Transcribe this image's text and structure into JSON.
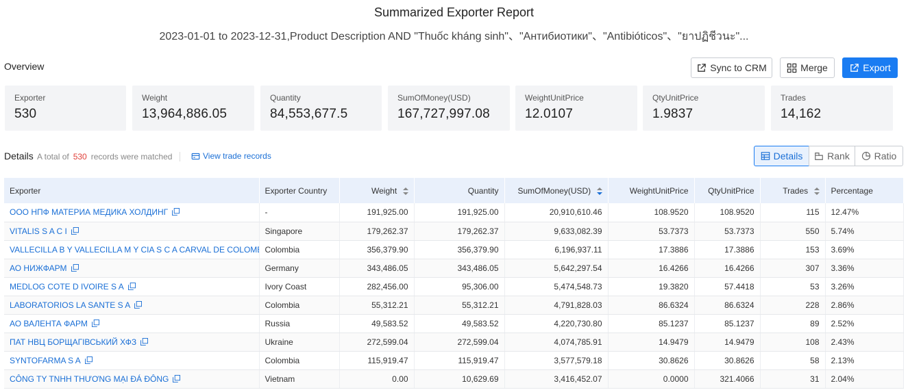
{
  "report": {
    "title": "Summarized Exporter Report",
    "subtitle": "2023-01-01 to 2023-12-31,Product Description AND \"Thuốc kháng sinh\"、\"Антибиотики\"、\"Antibióticos\"、\"ยาปฏิชีวนะ\"..."
  },
  "overview": {
    "label": "Overview",
    "actions": {
      "sync": "Sync to CRM",
      "merge": "Merge",
      "export": "Export"
    },
    "stats": [
      {
        "label": "Exporter",
        "value": "530"
      },
      {
        "label": "Weight",
        "value": "13,964,886.05"
      },
      {
        "label": "Quantity",
        "value": "84,553,677.5"
      },
      {
        "label": "SumOfMoney(USD)",
        "value": "167,727,997.08"
      },
      {
        "label": "WeightUnitPrice",
        "value": "12.0107"
      },
      {
        "label": "QtyUnitPrice",
        "value": "1.9837"
      },
      {
        "label": "Trades",
        "value": "14,162"
      }
    ]
  },
  "details": {
    "label": "Details",
    "total_prefix": "A total of",
    "total_count": "530",
    "total_suffix": "records were matched",
    "view_link": "View trade records",
    "views": {
      "details": "Details",
      "rank": "Rank",
      "ratio": "Ratio"
    }
  },
  "table": {
    "columns": [
      "Exporter",
      "Exporter Country",
      "Weight",
      "Quantity",
      "SumOfMoney(USD)",
      "WeightUnitPrice",
      "QtyUnitPrice",
      "Trades",
      "Percentage"
    ],
    "rows": [
      [
        "ООО НПФ МАТЕРИА МЕДИКА ХОЛДИНГ",
        "-",
        "191,925.00",
        "191,925.00",
        "20,910,610.46",
        "108.9520",
        "108.9520",
        "115",
        "12.47%"
      ],
      [
        "VITALIS S A C I",
        "Singapore",
        "179,262.37",
        "179,262.37",
        "9,633,082.39",
        "53.7373",
        "53.7373",
        "550",
        "5.74%"
      ],
      [
        "VALLECILLA B Y VALLECILLA M Y CIA S C A CARVAL DE COLOMBIA",
        "Colombia",
        "356,379.90",
        "356,379.90",
        "6,196,937.11",
        "17.3886",
        "17.3886",
        "153",
        "3.69%"
      ],
      [
        "АО НИЖФАРМ",
        "Germany",
        "343,486.05",
        "343,486.05",
        "5,642,297.54",
        "16.4266",
        "16.4266",
        "307",
        "3.36%"
      ],
      [
        "MEDLOG COTE D IVOIRE S A",
        "Ivory Coast",
        "282,456.00",
        "95,306.00",
        "5,474,548.73",
        "19.3820",
        "57.4418",
        "53",
        "3.26%"
      ],
      [
        "LABORATORIOS LA SANTE S A",
        "Colombia",
        "55,312.21",
        "55,312.21",
        "4,791,828.03",
        "86.6324",
        "86.6324",
        "228",
        "2.86%"
      ],
      [
        "АО ВАЛЕНТА ФАРМ",
        "Russia",
        "49,583.52",
        "49,583.52",
        "4,220,730.80",
        "85.1237",
        "85.1237",
        "89",
        "2.52%"
      ],
      [
        "ПАТ НВЦ БОРЩАГІВСЬКИЙ ХФЗ",
        "Ukraine",
        "272,599.04",
        "272,599.04",
        "4,074,785.91",
        "14.9479",
        "14.9479",
        "108",
        "2.43%"
      ],
      [
        "SYNTOFARMA S A",
        "Colombia",
        "115,919.47",
        "115,919.47",
        "3,577,579.18",
        "30.8626",
        "30.8626",
        "58",
        "2.13%"
      ],
      [
        "CÔNG TY TNHH THƯƠNG MẠI ĐÁ ĐÔNG",
        "Vietnam",
        "0.00",
        "10,629.69",
        "3,416,452.07",
        "0.0000",
        "321.4066",
        "31",
        "2.04%"
      ]
    ]
  }
}
